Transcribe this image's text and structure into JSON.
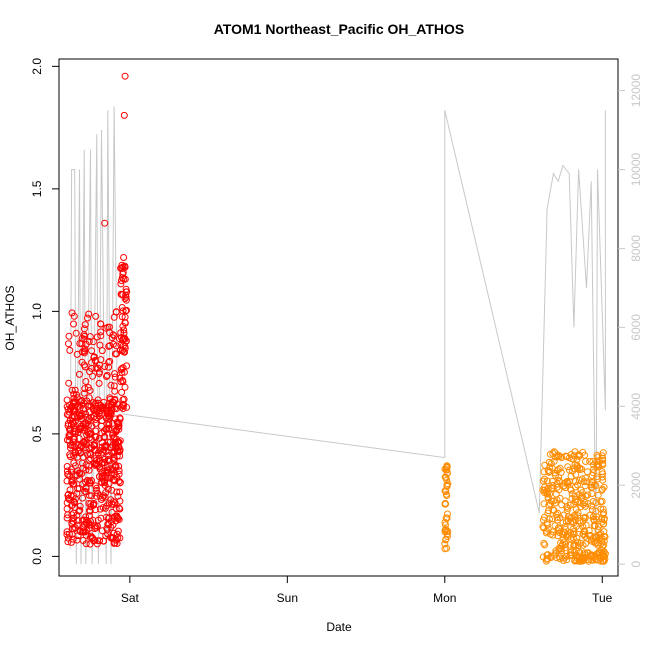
{
  "chart_data": {
    "type": "scatter",
    "title": "ATOM1 Northeast_Pacific OH_ATHOS",
    "xlabel": "Date",
    "ylabel": "OH_ATHOS",
    "x_ticks": [
      "Sat",
      "Sun",
      "Mon",
      "Tue"
    ],
    "x_tick_days": [
      1,
      2,
      3,
      4
    ],
    "xlim_days": [
      0.55,
      4.1
    ],
    "ylim": [
      -0.08,
      2.03
    ],
    "y_ticks": [
      "0.0",
      "0.5",
      "1.0",
      "1.5",
      "2.0"
    ],
    "y2lim": [
      -300,
      12800
    ],
    "y2_ticks": [
      "0",
      "2000",
      "4000",
      "6000",
      "8000",
      "10000",
      "12000"
    ],
    "grid": false,
    "colors": {
      "flight1_points": "#ff0000",
      "flight2_points": "#ff8c00",
      "altitude_line": "#c8c8c8",
      "axis": "#000000"
    },
    "series": [
      {
        "color_key": "flight1_points",
        "marker": "open-circle",
        "x_day_range": [
          0.6,
          0.98
        ],
        "y_range": [
          0.04,
          1.96
        ],
        "n_points": 700
      },
      {
        "color_key": "flight2_points",
        "marker": "open-circle",
        "x_day_ranges": [
          [
            3.0,
            3.02
          ],
          [
            3.62,
            4.02
          ]
        ],
        "y_range": [
          -0.02,
          0.5
        ],
        "n_points": 450
      },
      {
        "color_key": "altitude_line",
        "marker": "line",
        "axis": "right",
        "note_points": [
          [
            0.62,
            400
          ],
          [
            0.63,
            10000
          ],
          [
            0.65,
            10000
          ],
          [
            0.66,
            0
          ],
          [
            0.68,
            10000
          ],
          [
            0.69,
            0
          ],
          [
            0.71,
            10500
          ],
          [
            0.72,
            0
          ],
          [
            0.75,
            10500
          ],
          [
            0.76,
            0
          ],
          [
            0.79,
            10900
          ],
          [
            0.8,
            0
          ],
          [
            0.82,
            11000
          ],
          [
            0.85,
            0
          ],
          [
            0.86,
            11500
          ],
          [
            0.88,
            0
          ],
          [
            0.9,
            11600
          ],
          [
            0.92,
            4000
          ],
          [
            0.96,
            3800
          ],
          [
            3.0,
            2700
          ],
          [
            3.0,
            11500
          ],
          [
            3.6,
            1300
          ],
          [
            3.65,
            9000
          ],
          [
            3.69,
            9900
          ],
          [
            3.72,
            9700
          ],
          [
            3.75,
            10100
          ],
          [
            3.79,
            9900
          ],
          [
            3.82,
            6000
          ],
          [
            3.85,
            10000
          ],
          [
            3.9,
            7000
          ],
          [
            3.93,
            9700
          ],
          [
            3.96,
            400
          ],
          [
            3.97,
            10000
          ],
          [
            4.02,
            3900
          ],
          [
            4.02,
            11500
          ]
        ]
      }
    ]
  }
}
